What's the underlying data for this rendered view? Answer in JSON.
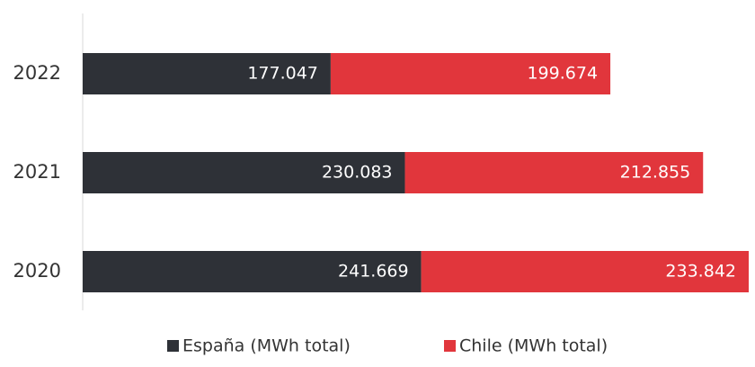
{
  "chart_data": {
    "type": "stacked-barh",
    "categories": [
      "2022",
      "2021",
      "2020"
    ],
    "series": [
      {
        "name": "España (MWh total)",
        "color": "#2e3137",
        "values": [
          177047,
          230083,
          241669
        ],
        "value_labels": [
          "177.047",
          "230.083",
          "241.669"
        ]
      },
      {
        "name": "Chile (MWh total)",
        "color": "#e1363c",
        "values": [
          199674,
          212855,
          233842
        ],
        "value_labels": [
          "199.674",
          "212.855",
          "233.842"
        ]
      }
    ],
    "xlim": [
      0,
      480000
    ],
    "legend": "bottom"
  }
}
